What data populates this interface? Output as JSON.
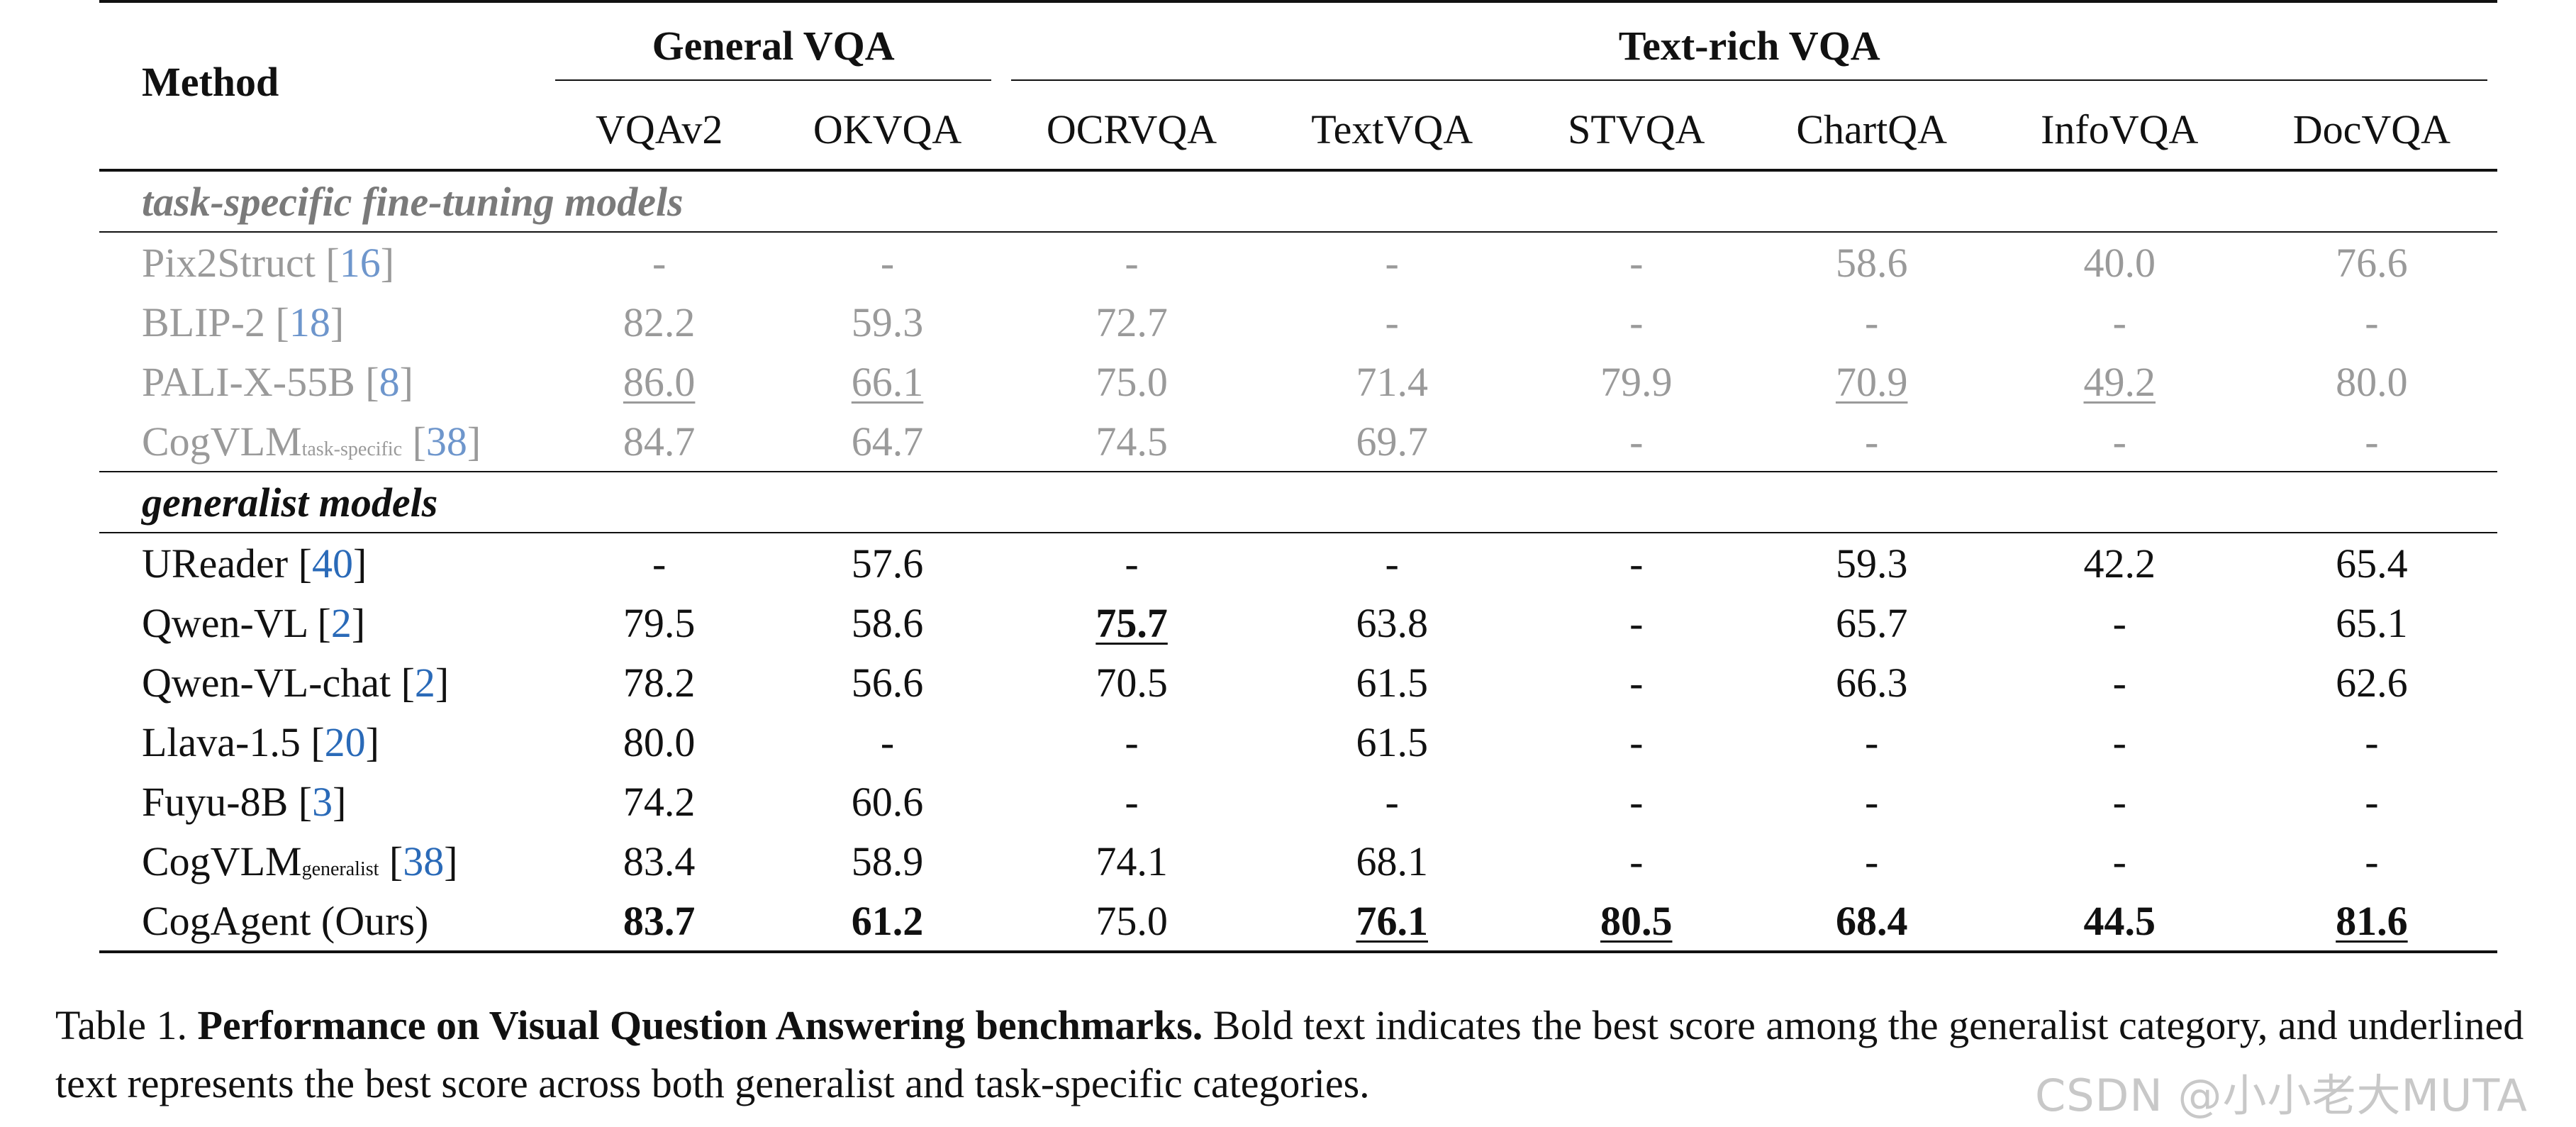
{
  "table": {
    "method_header": "Method",
    "group_headers": [
      "General VQA",
      "Text-rich VQA"
    ],
    "columns": [
      "VQAv2",
      "OKVQA",
      "OCRVQA",
      "TextVQA",
      "STVQA",
      "ChartQA",
      "InfoVQA",
      "DocVQA"
    ],
    "sections": [
      {
        "label": "task-specific fine-tuning models",
        "muted": true,
        "rows": [
          {
            "name": "Pix2Struct",
            "subscript": "",
            "cite": "16",
            "cells": [
              {
                "v": "-",
                "b": false,
                "u": false
              },
              {
                "v": "-",
                "b": false,
                "u": false
              },
              {
                "v": "-",
                "b": false,
                "u": false
              },
              {
                "v": "-",
                "b": false,
                "u": false
              },
              {
                "v": "-",
                "b": false,
                "u": false
              },
              {
                "v": "58.6",
                "b": false,
                "u": false
              },
              {
                "v": "40.0",
                "b": false,
                "u": false
              },
              {
                "v": "76.6",
                "b": false,
                "u": false
              }
            ]
          },
          {
            "name": "BLIP-2",
            "subscript": "",
            "cite": "18",
            "cells": [
              {
                "v": "82.2",
                "b": false,
                "u": false
              },
              {
                "v": "59.3",
                "b": false,
                "u": false
              },
              {
                "v": "72.7",
                "b": false,
                "u": false
              },
              {
                "v": "-",
                "b": false,
                "u": false
              },
              {
                "v": "-",
                "b": false,
                "u": false
              },
              {
                "v": "-",
                "b": false,
                "u": false
              },
              {
                "v": "-",
                "b": false,
                "u": false
              },
              {
                "v": "-",
                "b": false,
                "u": false
              }
            ]
          },
          {
            "name": "PALI-X-55B",
            "subscript": "",
            "cite": "8",
            "cells": [
              {
                "v": "86.0",
                "b": false,
                "u": true
              },
              {
                "v": "66.1",
                "b": false,
                "u": true
              },
              {
                "v": "75.0",
                "b": false,
                "u": false
              },
              {
                "v": "71.4",
                "b": false,
                "u": false
              },
              {
                "v": "79.9",
                "b": false,
                "u": false
              },
              {
                "v": "70.9",
                "b": false,
                "u": true
              },
              {
                "v": "49.2",
                "b": false,
                "u": true
              },
              {
                "v": "80.0",
                "b": false,
                "u": false
              }
            ]
          },
          {
            "name": "CogVLM",
            "subscript": "task-specific",
            "cite": "38",
            "cells": [
              {
                "v": "84.7",
                "b": false,
                "u": false
              },
              {
                "v": "64.7",
                "b": false,
                "u": false
              },
              {
                "v": "74.5",
                "b": false,
                "u": false
              },
              {
                "v": "69.7",
                "b": false,
                "u": false
              },
              {
                "v": "-",
                "b": false,
                "u": false
              },
              {
                "v": "-",
                "b": false,
                "u": false
              },
              {
                "v": "-",
                "b": false,
                "u": false
              },
              {
                "v": "-",
                "b": false,
                "u": false
              }
            ]
          }
        ]
      },
      {
        "label": "generalist models",
        "muted": false,
        "rows": [
          {
            "name": "UReader",
            "subscript": "",
            "cite": "40",
            "cells": [
              {
                "v": "-",
                "b": false,
                "u": false
              },
              {
                "v": "57.6",
                "b": false,
                "u": false
              },
              {
                "v": "-",
                "b": false,
                "u": false
              },
              {
                "v": "-",
                "b": false,
                "u": false
              },
              {
                "v": "-",
                "b": false,
                "u": false
              },
              {
                "v": "59.3",
                "b": false,
                "u": false
              },
              {
                "v": "42.2",
                "b": false,
                "u": false
              },
              {
                "v": "65.4",
                "b": false,
                "u": false
              }
            ]
          },
          {
            "name": "Qwen-VL",
            "subscript": "",
            "cite": "2",
            "cells": [
              {
                "v": "79.5",
                "b": false,
                "u": false
              },
              {
                "v": "58.6",
                "b": false,
                "u": false
              },
              {
                "v": "75.7",
                "b": true,
                "u": true
              },
              {
                "v": "63.8",
                "b": false,
                "u": false
              },
              {
                "v": "-",
                "b": false,
                "u": false
              },
              {
                "v": "65.7",
                "b": false,
                "u": false
              },
              {
                "v": "-",
                "b": false,
                "u": false
              },
              {
                "v": "65.1",
                "b": false,
                "u": false
              }
            ]
          },
          {
            "name": "Qwen-VL-chat",
            "subscript": "",
            "cite": "2",
            "cells": [
              {
                "v": "78.2",
                "b": false,
                "u": false
              },
              {
                "v": "56.6",
                "b": false,
                "u": false
              },
              {
                "v": "70.5",
                "b": false,
                "u": false
              },
              {
                "v": "61.5",
                "b": false,
                "u": false
              },
              {
                "v": "-",
                "b": false,
                "u": false
              },
              {
                "v": "66.3",
                "b": false,
                "u": false
              },
              {
                "v": "-",
                "b": false,
                "u": false
              },
              {
                "v": "62.6",
                "b": false,
                "u": false
              }
            ]
          },
          {
            "name": "Llava-1.5",
            "subscript": "",
            "cite": "20",
            "cells": [
              {
                "v": "80.0",
                "b": false,
                "u": false
              },
              {
                "v": "-",
                "b": false,
                "u": false
              },
              {
                "v": "-",
                "b": false,
                "u": false
              },
              {
                "v": "61.5",
                "b": false,
                "u": false
              },
              {
                "v": "-",
                "b": false,
                "u": false
              },
              {
                "v": "-",
                "b": false,
                "u": false
              },
              {
                "v": "-",
                "b": false,
                "u": false
              },
              {
                "v": "-",
                "b": false,
                "u": false
              }
            ]
          },
          {
            "name": "Fuyu-8B",
            "subscript": "",
            "cite": "3",
            "cells": [
              {
                "v": "74.2",
                "b": false,
                "u": false
              },
              {
                "v": "60.6",
                "b": false,
                "u": false
              },
              {
                "v": "-",
                "b": false,
                "u": false
              },
              {
                "v": "-",
                "b": false,
                "u": false
              },
              {
                "v": "-",
                "b": false,
                "u": false
              },
              {
                "v": "-",
                "b": false,
                "u": false
              },
              {
                "v": "-",
                "b": false,
                "u": false
              },
              {
                "v": "-",
                "b": false,
                "u": false
              }
            ]
          },
          {
            "name": "CogVLM",
            "subscript": "generalist",
            "cite": "38",
            "cells": [
              {
                "v": "83.4",
                "b": false,
                "u": false
              },
              {
                "v": "58.9",
                "b": false,
                "u": false
              },
              {
                "v": "74.1",
                "b": false,
                "u": false
              },
              {
                "v": "68.1",
                "b": false,
                "u": false
              },
              {
                "v": "-",
                "b": false,
                "u": false
              },
              {
                "v": "-",
                "b": false,
                "u": false
              },
              {
                "v": "-",
                "b": false,
                "u": false
              },
              {
                "v": "-",
                "b": false,
                "u": false
              }
            ]
          },
          {
            "name": "CogAgent (Ours)",
            "subscript": "",
            "cite": "",
            "cells": [
              {
                "v": "83.7",
                "b": true,
                "u": false
              },
              {
                "v": "61.2",
                "b": true,
                "u": false
              },
              {
                "v": "75.0",
                "b": false,
                "u": false
              },
              {
                "v": "76.1",
                "b": true,
                "u": true
              },
              {
                "v": "80.5",
                "b": true,
                "u": true
              },
              {
                "v": "68.4",
                "b": true,
                "u": false
              },
              {
                "v": "44.5",
                "b": true,
                "u": false
              },
              {
                "v": "81.6",
                "b": true,
                "u": true
              }
            ]
          }
        ]
      }
    ]
  },
  "caption": {
    "prefix": "Table 1.",
    "lead": "Performance on Visual Question Answering benchmarks.",
    "body": "Bold text indicates the best score among the generalist category, and underlined text represents the best score across both generalist and task-specific categories."
  },
  "watermark": "CSDN @小小老大MUTA"
}
